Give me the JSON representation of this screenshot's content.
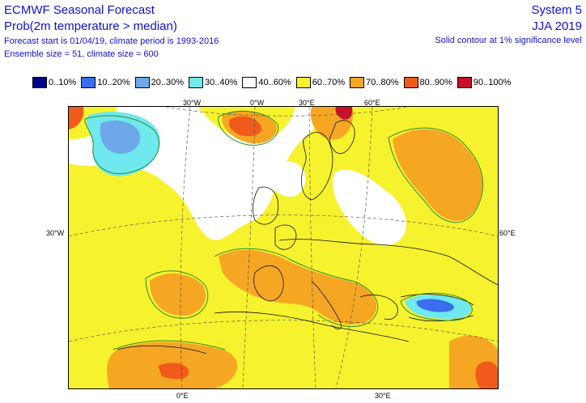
{
  "header": {
    "title": "ECMWF Seasonal Forecast",
    "subtitle": "Prob(2m temperature > median)",
    "forecast_info": "Forecast start is 01/04/19, climate period is 1993-2016",
    "ensemble_info": "Ensemble size = 51, climate size = 600",
    "system": "System 5",
    "season": "JJA 2019",
    "significance_note": "Solid contour at 1% significance level"
  },
  "legend": [
    {
      "label": "0..10%",
      "color": "#00008c"
    },
    {
      "label": "10..20%",
      "color": "#3a6ef0"
    },
    {
      "label": "20..30%",
      "color": "#6fa8e8"
    },
    {
      "label": "30..40%",
      "color": "#6fe8ee"
    },
    {
      "label": "40..60%",
      "color": "#ffffff"
    },
    {
      "label": "60..70%",
      "color": "#f6f22e"
    },
    {
      "label": "70..80%",
      "color": "#f5a623"
    },
    {
      "label": "80..90%",
      "color": "#f05a1a"
    },
    {
      "label": "90..100%",
      "color": "#c8102e"
    }
  ],
  "axes": {
    "top": [
      "30°W",
      "0°W",
      "30°E",
      "60°E"
    ],
    "left": "30°W",
    "right": "60°E",
    "bottom": [
      "0°E",
      "30°E"
    ]
  }
}
